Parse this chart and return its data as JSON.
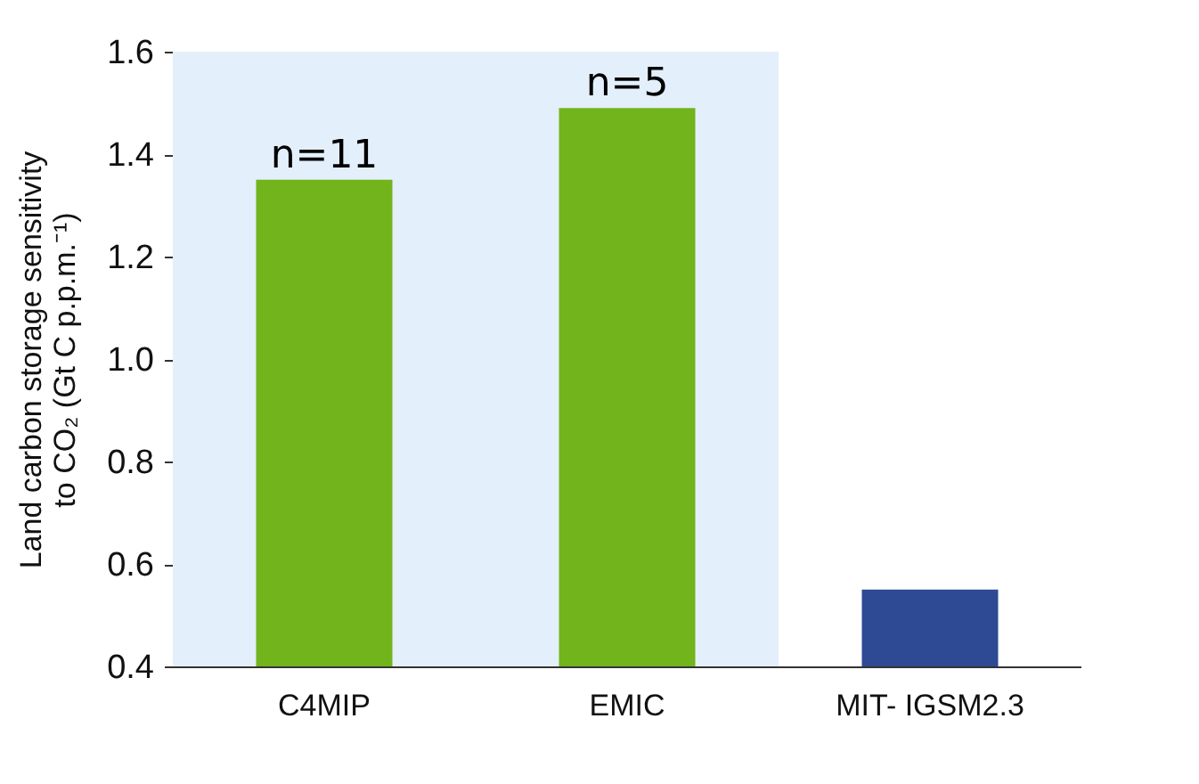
{
  "chart_data": {
    "type": "bar",
    "ylabel": "Land carbon storage sensitivity to CO₂ (Gt C p.p.m.⁻¹)",
    "categories": [
      "C4MIP",
      "EMIC",
      "MIT-\nIGSM2.3"
    ],
    "values": [
      1.35,
      1.49,
      0.55
    ],
    "colors": [
      "#72b41c",
      "#72b41c",
      "#2f4a94"
    ],
    "ylim": [
      0.4,
      1.6
    ],
    "yticks": [
      0.4,
      0.6,
      0.8,
      {
        "value": 1,
        "label": "1.0"
      },
      1.2,
      1.4,
      1.6
    ],
    "bands": [
      {
        "axis": "x",
        "from": "C4MIP",
        "to": "EMIC",
        "color": "#e3effb"
      }
    ],
    "annotations": [
      {
        "text": "n=11",
        "x": "C4MIP",
        "y": 1.35
      },
      {
        "text": "n=5",
        "x": "EMIC",
        "y": 1.49
      }
    ]
  }
}
